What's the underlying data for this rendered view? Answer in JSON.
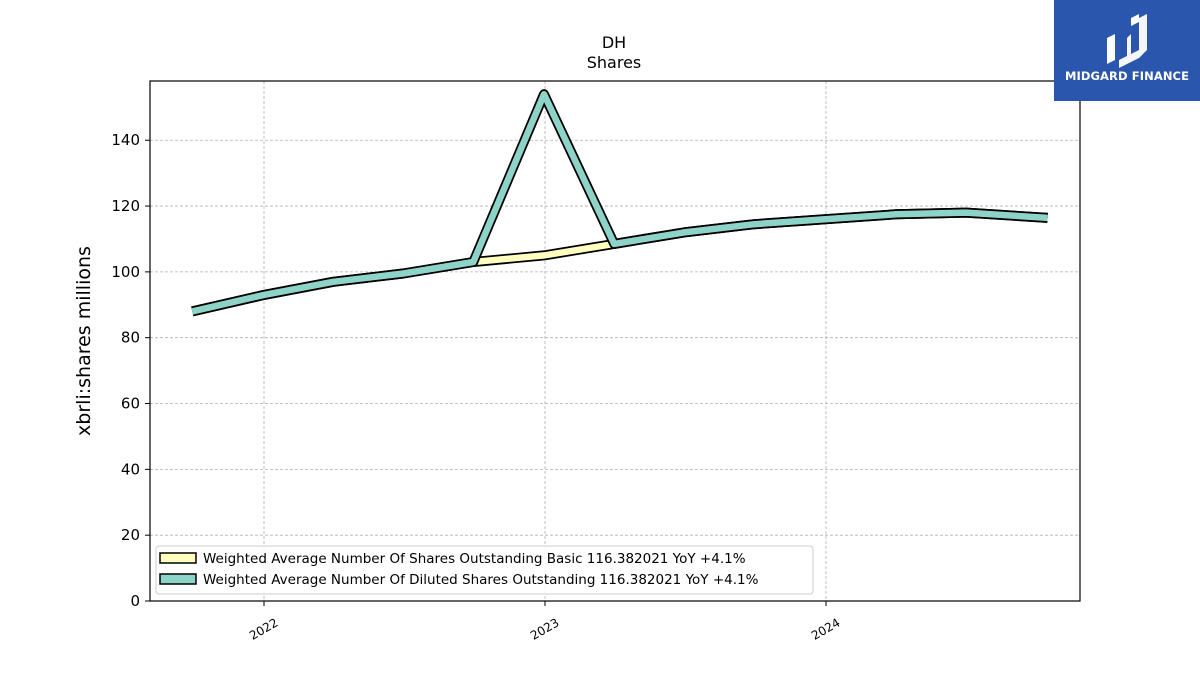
{
  "chart_data": {
    "type": "line",
    "title": "DH",
    "subtitle": "Shares",
    "ylabel": "xbrli:shares millions",
    "xlabel": "",
    "ylim": [
      0,
      158
    ],
    "yticks": [
      0,
      20,
      40,
      60,
      80,
      100,
      120,
      140
    ],
    "xticks": [
      "2022",
      "2023",
      "2024"
    ],
    "grid": true,
    "legend_position": "lower-left",
    "x": [
      "2021-09-30",
      "2022-01-01",
      "2022-04-01",
      "2022-07-01",
      "2022-09-30",
      "2022-12-31",
      "2023-04-01",
      "2023-07-01",
      "2023-09-30",
      "2023-12-31",
      "2024-04-01",
      "2024-07-01",
      "2024-10-15"
    ],
    "series": [
      {
        "name": "Weighted Average Number Of Shares Outstanding Basic  116.382021 YoY +4.1%",
        "color": "#ffffc0",
        "values": [
          88,
          93,
          97,
          99.5,
          103,
          105,
          108.5,
          112,
          114.5,
          116,
          117.5,
          118,
          116.4
        ]
      },
      {
        "name": "Weighted Average Number Of Diluted Shares Outstanding  116.382021 YoY +4.1%",
        "color": "#8dd3c7",
        "values": [
          88,
          93,
          97,
          99.5,
          103,
          154,
          108.5,
          112,
          114.5,
          116,
          117.5,
          118,
          116.4
        ]
      }
    ]
  },
  "logo": {
    "text": "MIDGARD FINANCE",
    "color": "#2a57ad"
  }
}
